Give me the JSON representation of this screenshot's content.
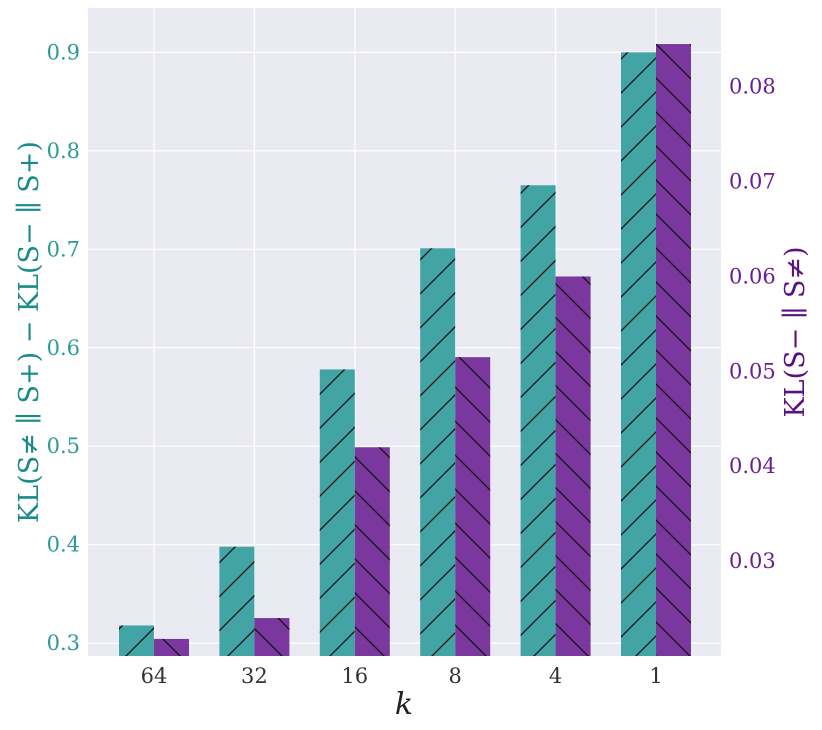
{
  "chart_data": {
    "type": "bar",
    "categories": [
      "64",
      "32",
      "16",
      "8",
      "4",
      "1"
    ],
    "xlabel": "k",
    "series": [
      {
        "name": "KL(S≠ ∥ S+) − KL(S− ∥ S+)",
        "axis": "left",
        "color": "#2a9a9a",
        "hatch": "forward",
        "values": [
          0.318,
          0.398,
          0.578,
          0.701,
          0.765,
          0.9
        ]
      },
      {
        "name": "KL(S− ∥ S≠)",
        "axis": "right",
        "color": "#6a1e91",
        "hatch": "backward",
        "values": [
          0.0218,
          0.024,
          0.042,
          0.0515,
          0.06,
          0.0845
        ]
      }
    ],
    "ylabel_left": "KL(S≠ ∥ S+) − KL(S− ∥ S+)",
    "ylabel_right": "KL(S− ∥ S≠)",
    "ylim_left": [
      0.287,
      0.945
    ],
    "ylim_right": [
      0.02,
      0.0883
    ],
    "yticks_left": [
      "0.3",
      "0.4",
      "0.5",
      "0.6",
      "0.7",
      "0.8",
      "0.9"
    ],
    "yticks_right": [
      "0.03",
      "0.04",
      "0.05",
      "0.06",
      "0.07",
      "0.08"
    ],
    "grid": true,
    "background": "#eaeaf2"
  }
}
